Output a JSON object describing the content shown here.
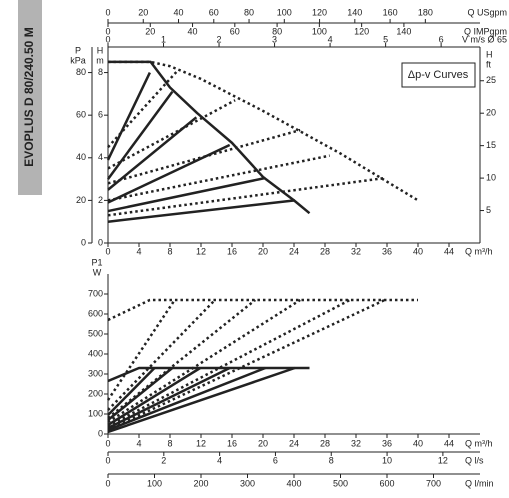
{
  "page_title": "EVOPLUS D 80/240.50 M",
  "chart_data": [
    {
      "type": "line",
      "annotation": "Δp-v Curves",
      "xlabel": "Q m³/h",
      "xlim": [
        0,
        48
      ],
      "xticks": [
        0,
        4,
        8,
        12,
        16,
        20,
        24,
        28,
        32,
        36,
        40,
        44
      ],
      "ylabel": {
        "symbol": "H",
        "unit": "m"
      },
      "ylim": [
        0,
        9.2
      ],
      "yticks": [
        0,
        2,
        4,
        6,
        8
      ],
      "kpa_axis": {
        "label": {
          "symbol": "P",
          "unit": "kPa"
        },
        "lim": [
          0,
          92
        ],
        "ticks": [
          0,
          20,
          40,
          60,
          80
        ]
      },
      "y2label": {
        "symbol": "H",
        "unit": "ft"
      },
      "y2lim": [
        0,
        30.2
      ],
      "y2ticks": [
        5,
        10,
        15,
        20,
        25
      ],
      "top_axes": [
        {
          "label": "Q USgpm",
          "lim": [
            0,
            211
          ],
          "ticks": [
            0,
            20,
            40,
            60,
            80,
            100,
            120,
            140,
            160,
            180
          ]
        },
        {
          "label": "Q IMPgpm",
          "lim": [
            0,
            176
          ],
          "ticks": [
            0,
            20,
            40,
            60,
            80,
            100,
            120,
            140
          ]
        },
        {
          "label": "V m/s Ø 65",
          "lim": [
            0,
            6.7
          ],
          "ticks": [
            0,
            1,
            2,
            3,
            4,
            5,
            6
          ]
        }
      ],
      "series": [
        {
          "color": "#222222",
          "style": "solid",
          "x": [
            0,
            5.5,
            8,
            11.5,
            16,
            20,
            24,
            26
          ],
          "values": [
            8.5,
            8.5,
            7.3,
            6.1,
            4.7,
            3.1,
            2.0,
            1.4
          ]
        },
        {
          "color": "#222222",
          "style": "solid",
          "x": [
            0,
            5.4
          ],
          "values": [
            3.9,
            8.0
          ]
        },
        {
          "color": "#222222",
          "style": "solid",
          "x": [
            0,
            8.3
          ],
          "values": [
            3.0,
            7.1
          ]
        },
        {
          "color": "#222222",
          "style": "solid",
          "x": [
            0,
            11.4
          ],
          "values": [
            2.5,
            5.9
          ]
        },
        {
          "color": "#222222",
          "style": "solid",
          "x": [
            0,
            15.7
          ],
          "values": [
            1.9,
            4.6
          ]
        },
        {
          "color": "#222222",
          "style": "solid",
          "x": [
            0,
            20.3
          ],
          "values": [
            1.5,
            3.05
          ]
        },
        {
          "color": "#222222",
          "style": "solid",
          "x": [
            0,
            24.1
          ],
          "values": [
            1.0,
            2.0
          ]
        },
        {
          "color": "#222222",
          "style": "dotted",
          "x": [
            0,
            5.5,
            8,
            12,
            20,
            30,
            40
          ],
          "values": [
            8.5,
            8.5,
            8.3,
            7.7,
            6.2,
            4.2,
            2.0
          ]
        },
        {
          "color": "#222222",
          "style": "dotted",
          "x": [
            0,
            9
          ],
          "values": [
            4.5,
            8.1
          ]
        },
        {
          "color": "#222222",
          "style": "dotted",
          "x": [
            0,
            16.4
          ],
          "values": [
            3.5,
            6.7
          ]
        },
        {
          "color": "#222222",
          "style": "dotted",
          "x": [
            0,
            24.8
          ],
          "values": [
            2.8,
            5.3
          ]
        },
        {
          "color": "#222222",
          "style": "dotted",
          "x": [
            0,
            28.6
          ],
          "values": [
            2.0,
            4.1
          ]
        },
        {
          "color": "#222222",
          "style": "dotted",
          "x": [
            0,
            35.7
          ],
          "values": [
            1.3,
            3.05
          ]
        }
      ]
    },
    {
      "type": "line",
      "xlabel": "Q m³/h",
      "xlim": [
        0,
        48
      ],
      "xticks": [
        0,
        4,
        8,
        12,
        16,
        20,
        24,
        28,
        32,
        36,
        40,
        44
      ],
      "ylabel": {
        "symbol": "P1",
        "unit": "W"
      },
      "ylim": [
        0,
        800
      ],
      "yticks": [
        0,
        100,
        200,
        300,
        400,
        500,
        600,
        700
      ],
      "bottom_axes": [
        {
          "label": "Q l/s",
          "lim": [
            0,
            13.33
          ],
          "ticks": [
            0,
            2,
            4,
            6,
            8,
            10,
            12
          ]
        },
        {
          "label": "Q l/min",
          "lim": [
            0,
            800
          ],
          "ticks": [
            0,
            100,
            200,
            300,
            400,
            500,
            600,
            700
          ]
        }
      ],
      "series": [
        {
          "color": "#222222",
          "style": "solid",
          "x": [
            0,
            4,
            26
          ],
          "values": [
            265,
            330,
            330
          ]
        },
        {
          "color": "#222222",
          "style": "solid",
          "x": [
            0,
            6
          ],
          "values": [
            95,
            330
          ]
        },
        {
          "color": "#222222",
          "style": "solid",
          "x": [
            0,
            8.3
          ],
          "values": [
            70,
            330
          ]
        },
        {
          "color": "#222222",
          "style": "solid",
          "x": [
            0,
            11.9
          ],
          "values": [
            45,
            330
          ]
        },
        {
          "color": "#222222",
          "style": "solid",
          "x": [
            0,
            15.7
          ],
          "values": [
            30,
            330
          ]
        },
        {
          "color": "#222222",
          "style": "solid",
          "x": [
            0,
            20.3
          ],
          "values": [
            20,
            330
          ]
        },
        {
          "color": "#222222",
          "style": "solid",
          "x": [
            0,
            24.1
          ],
          "values": [
            10,
            330
          ]
        },
        {
          "color": "#222222",
          "style": "dotted",
          "x": [
            0,
            5.4,
            40
          ],
          "values": [
            570,
            670,
            670
          ]
        },
        {
          "color": "#222222",
          "style": "dotted",
          "x": [
            0,
            8.6
          ],
          "values": [
            170,
            670
          ]
        },
        {
          "color": "#222222",
          "style": "dotted",
          "x": [
            0,
            13.8
          ],
          "values": [
            120,
            670
          ]
        },
        {
          "color": "#222222",
          "style": "dotted",
          "x": [
            0,
            19
          ],
          "values": [
            80,
            670
          ]
        },
        {
          "color": "#222222",
          "style": "dotted",
          "x": [
            0,
            24.8
          ],
          "values": [
            60,
            670
          ]
        },
        {
          "color": "#222222",
          "style": "dotted",
          "x": [
            0,
            31.2
          ],
          "values": [
            40,
            670
          ]
        },
        {
          "color": "#222222",
          "style": "dotted",
          "x": [
            0,
            35.7
          ],
          "values": [
            20,
            670
          ]
        }
      ]
    }
  ]
}
